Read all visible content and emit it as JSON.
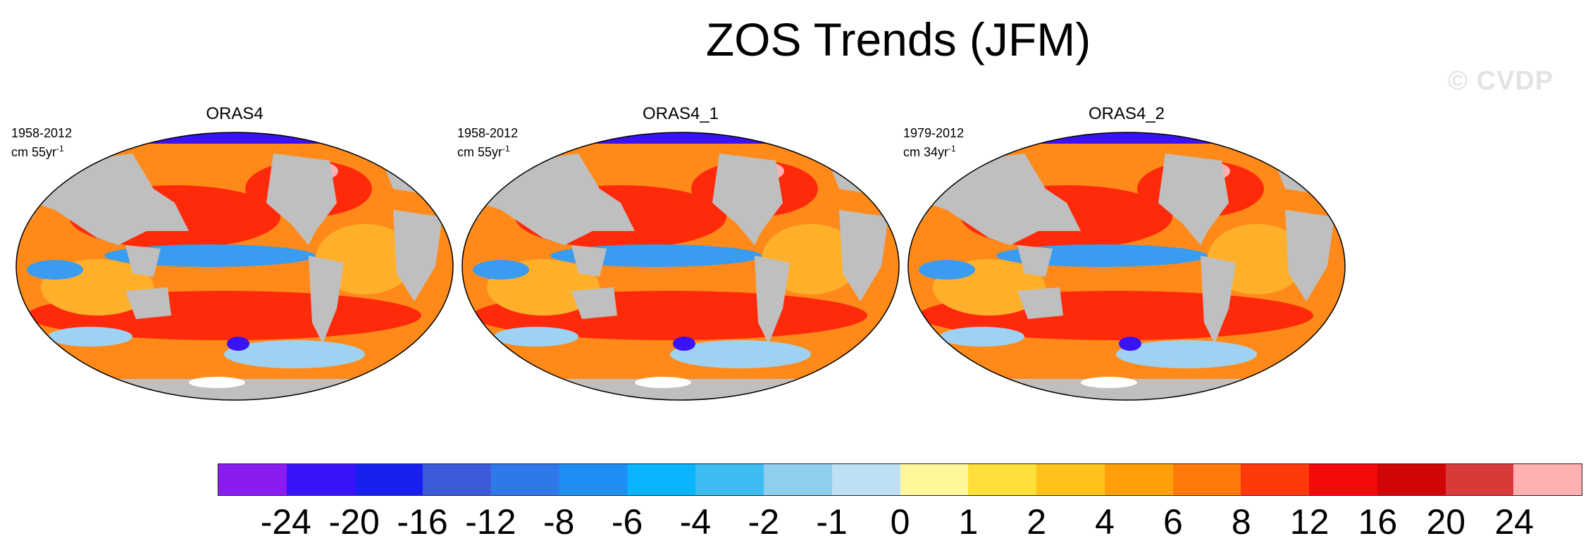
{
  "figure": {
    "title": "ZOS Trends (JFM)",
    "watermark": "© CVDP"
  },
  "panels": [
    {
      "name": "ORAS4",
      "period": "1958-2012",
      "units_prefix": "cm 55yr",
      "units_exp": "-1"
    },
    {
      "name": "ORAS4_1",
      "period": "1958-2012",
      "units_prefix": "cm 55yr",
      "units_exp": "-1"
    },
    {
      "name": "ORAS4_2",
      "period": "1979-2012",
      "units_prefix": "cm 34yr",
      "units_exp": "-1"
    }
  ],
  "colorbar": {
    "colors": [
      "#8a1cf0",
      "#3a12f7",
      "#1820f0",
      "#3b5bdb",
      "#2f78ea",
      "#1f8ff5",
      "#0ab4ff",
      "#3dbcf2",
      "#8fcfee",
      "#bde0f4",
      "#fff79a",
      "#ffe03a",
      "#ffc21a",
      "#ff9f0a",
      "#ff7a0a",
      "#ff3a0a",
      "#f50a0a",
      "#d00606",
      "#d83a3a",
      "#ffb0b0"
    ],
    "labels": [
      "-24",
      "-20",
      "-16",
      "-12",
      "-8",
      "-6",
      "-4",
      "-2",
      "-1",
      "0",
      "1",
      "2",
      "4",
      "6",
      "8",
      "12",
      "16",
      "20",
      "24"
    ]
  },
  "map_colors": {
    "land": "#bfbfbf",
    "ocean_base": "#ff8a1a",
    "warm": "#ff2a0a",
    "warm_light": "#ffb02a",
    "cool": "#3a9cf0",
    "cool_light": "#9fd2f2",
    "deep": "#3a12f7",
    "hot": "#ffb0b0",
    "ice": "#ffffff"
  }
}
